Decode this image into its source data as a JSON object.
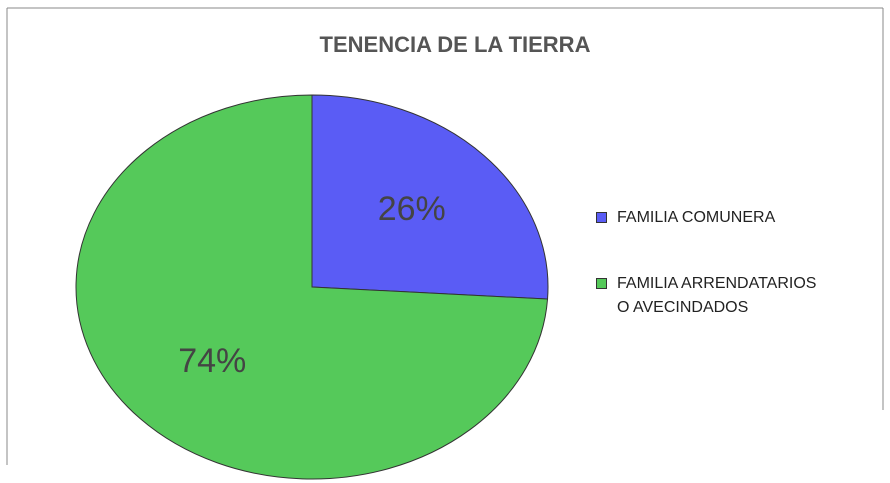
{
  "chart_data": {
    "type": "pie",
    "title": "TENENCIA DE LA TIERRA",
    "categories": [
      "FAMILIA COMUNERA",
      "FAMILIA ARRENDATARIOS O AVECINDADOS"
    ],
    "values": [
      26,
      74
    ],
    "value_labels": [
      "26%",
      "74%"
    ],
    "colors": [
      "#5a5cf5",
      "#55c95a"
    ],
    "legend": "right"
  }
}
